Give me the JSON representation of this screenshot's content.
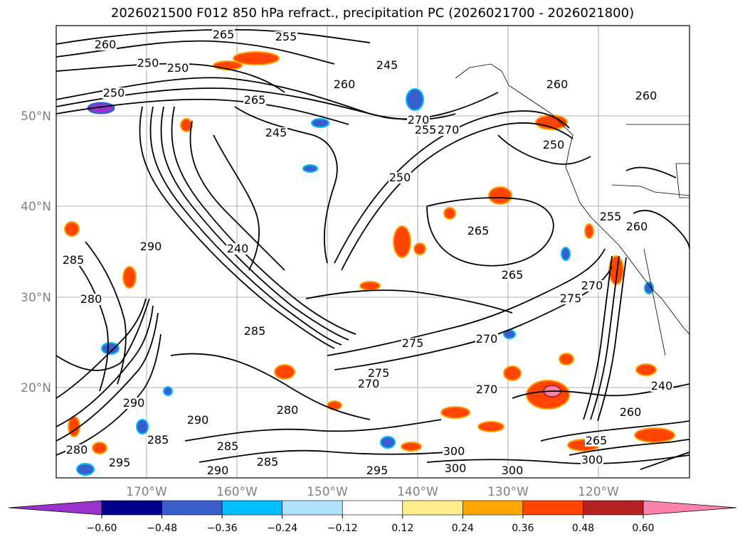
{
  "title": "2026021500 F012 850 hPa refract., precipitation PC (2026021700 - 2026021800)",
  "lat_labels": [
    "50°N",
    "40°N",
    "30°N",
    "20°N"
  ],
  "lon_labels": [
    "170°W",
    "160°W",
    "150°W",
    "140°W",
    "130°W",
    "120°W"
  ],
  "colorbar": {
    "ticks": [
      "−0.60",
      "−0.48",
      "−0.36",
      "−0.24",
      "−0.12",
      "0.12",
      "0.24",
      "0.36",
      "0.48",
      "0.60"
    ],
    "colors": [
      "#9a32cd",
      "#00008b",
      "#3a5fcd",
      "#00bfff",
      "#b0e2ff",
      "#ffffff",
      "#ffec8b",
      "#ffa500",
      "#ff4500",
      "#b22222",
      "#ff82ab"
    ]
  },
  "contour_labels": [
    {
      "text": "260"
    },
    {
      "text": "250"
    },
    {
      "text": "250"
    },
    {
      "text": "250"
    },
    {
      "text": "255"
    },
    {
      "text": "265"
    },
    {
      "text": "245"
    },
    {
      "text": "265"
    },
    {
      "text": "260"
    },
    {
      "text": "270"
    },
    {
      "text": "245"
    },
    {
      "text": "255"
    },
    {
      "text": "250"
    },
    {
      "text": "260"
    },
    {
      "text": "250"
    },
    {
      "text": "270"
    },
    {
      "text": "260"
    },
    {
      "text": "265"
    },
    {
      "text": "255"
    },
    {
      "text": "260"
    },
    {
      "text": "240"
    },
    {
      "text": "290"
    },
    {
      "text": "265"
    },
    {
      "text": "275"
    },
    {
      "text": "270"
    },
    {
      "text": "285"
    },
    {
      "text": "275"
    },
    {
      "text": "270"
    },
    {
      "text": "275"
    },
    {
      "text": "270"
    },
    {
      "text": "270"
    },
    {
      "text": "240"
    },
    {
      "text": "260"
    },
    {
      "text": "290"
    },
    {
      "text": "285"
    },
    {
      "text": "280"
    },
    {
      "text": "290"
    },
    {
      "text": "285"
    },
    {
      "text": "285"
    },
    {
      "text": "300"
    },
    {
      "text": "300"
    },
    {
      "text": "300"
    },
    {
      "text": "295"
    },
    {
      "text": "300"
    },
    {
      "text": "290"
    },
    {
      "text": "280"
    },
    {
      "text": "295"
    },
    {
      "text": "265"
    },
    {
      "text": "280"
    },
    {
      "text": "285"
    }
  ],
  "chart_data": {
    "type": "map",
    "title": "2026021500 F012 850 hPa refract., precipitation PC (2026021700 - 2026021800)",
    "colorbar_levels": [
      -0.6,
      -0.48,
      -0.36,
      -0.24,
      -0.12,
      0.12,
      0.24,
      0.36,
      0.48,
      0.6
    ],
    "contour_variable_range": [
      240,
      300
    ]
  }
}
